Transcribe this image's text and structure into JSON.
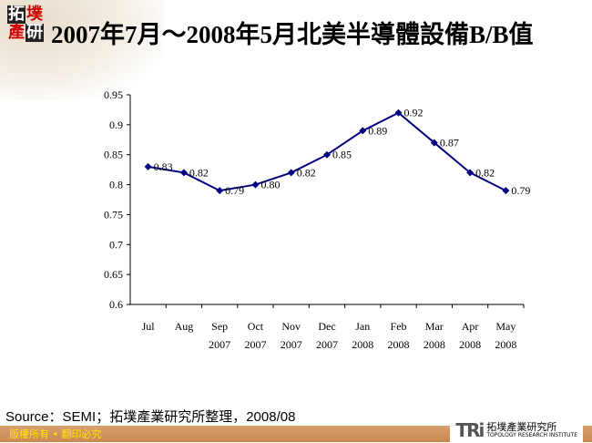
{
  "logo": {
    "chars": [
      "拓",
      "墣",
      "產",
      "研"
    ]
  },
  "title": "2007年7月～2008年5月北美半導體設備B/B值",
  "source": "Source：SEMI；拓墣產業研究所整理，2008/08",
  "footer": {
    "copyright": "版權所有 • 翻印必究",
    "brand": "TRi",
    "brand_cn": "拓墣產業研究所",
    "brand_en": "TOPOLOGY RESEARCH INSTITUTE"
  },
  "colors": {
    "series": "#000080"
  },
  "chart_data": {
    "type": "line",
    "categories": [
      "Jul",
      "Aug",
      "Sep\n2007",
      "Oct\n2007",
      "Nov\n2007",
      "Dec\n2007",
      "Jan\n2008",
      "Feb\n2008",
      "Mar\n2008",
      "Apr\n2008",
      "May\n2008"
    ],
    "values": [
      0.83,
      0.82,
      0.79,
      0.8,
      0.82,
      0.85,
      0.89,
      0.92,
      0.87,
      0.82,
      0.79
    ],
    "labels": [
      "0.83",
      "0.82",
      "0.79",
      "0.80",
      "0.82",
      "0.85",
      "0.89",
      "0.92",
      "0.87",
      "0.82",
      "0.79"
    ],
    "ylim": [
      0.6,
      0.95
    ],
    "yticks": [
      "0.6",
      "0.65",
      "0.7",
      "0.75",
      "0.8",
      "0.85",
      "0.9",
      "0.95"
    ],
    "grid": false,
    "marker": "diamond"
  }
}
